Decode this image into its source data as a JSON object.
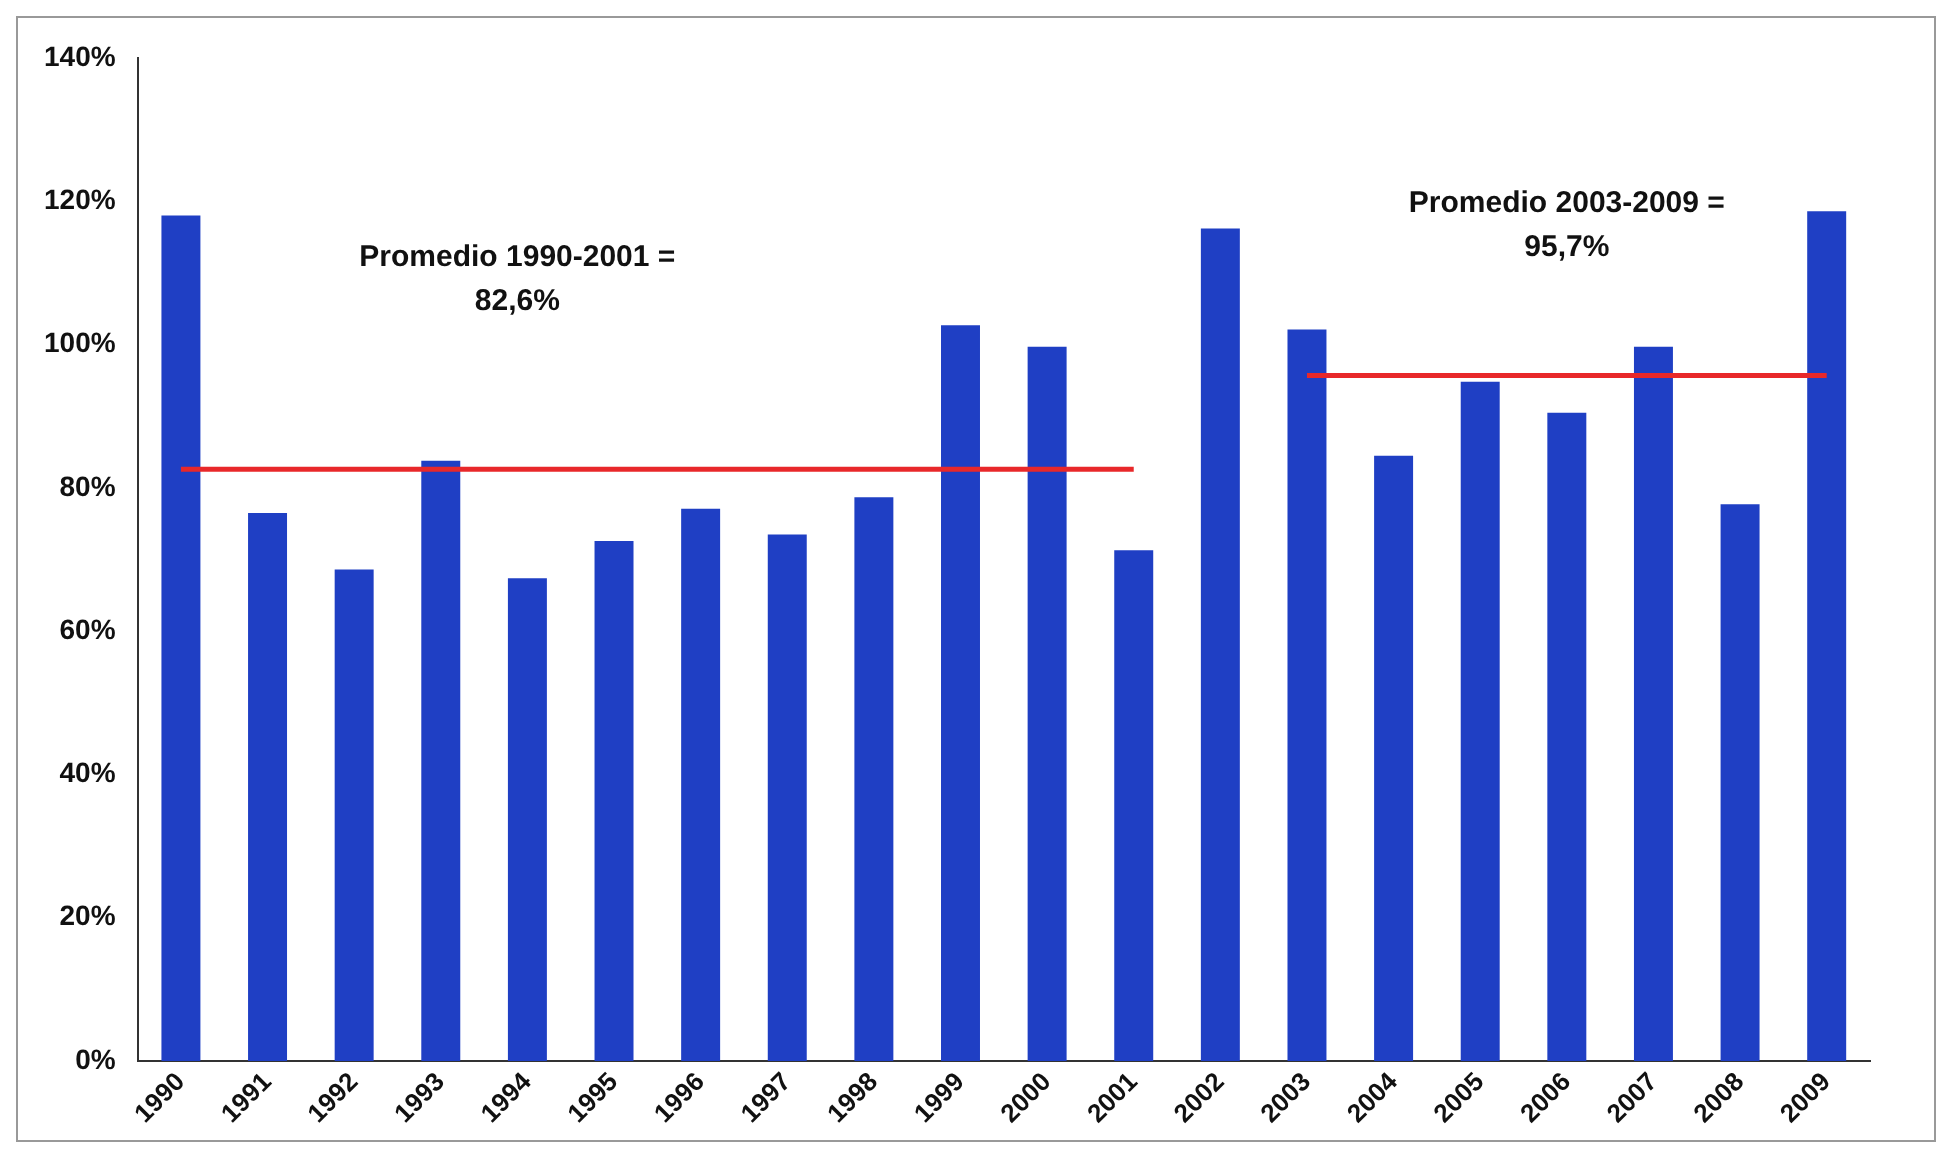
{
  "chart_data": {
    "type": "bar",
    "categories": [
      "1990",
      "1991",
      "1992",
      "1993",
      "1994",
      "1995",
      "1996",
      "1997",
      "1998",
      "1999",
      "2000",
      "2001",
      "2002",
      "2003",
      "2004",
      "2005",
      "2006",
      "2007",
      "2008",
      "2009"
    ],
    "series": [
      {
        "color": "#1f3fc4",
        "values": [
          118,
          76.5,
          68.6,
          83.8,
          67.4,
          72.6,
          77.1,
          73.5,
          78.7,
          102.7,
          99.7,
          71.3,
          116.2,
          102.1,
          84.5,
          94.8,
          90.5,
          99.7,
          77.7,
          118.6
        ]
      },
      {
        "type": "line",
        "color": "#e8282a",
        "values": [
          82.6,
          82.6,
          82.6,
          82.6,
          82.6,
          82.6,
          82.6,
          82.6,
          82.6,
          82.6,
          82.6,
          82.6,
          null,
          null,
          null,
          null,
          null,
          null,
          null,
          null
        ]
      },
      {
        "type": "line",
        "color": "#e8282a",
        "values": [
          null,
          null,
          null,
          null,
          null,
          null,
          null,
          null,
          null,
          null,
          null,
          null,
          null,
          95.7,
          95.7,
          95.7,
          95.7,
          95.7,
          95.7,
          95.7
        ]
      }
    ],
    "ylim": [
      0,
      140
    ],
    "yticks": [
      {
        "value": 0,
        "label": "0%"
      },
      {
        "value": 20,
        "label": "20%"
      },
      {
        "value": 40,
        "label": "40%"
      },
      {
        "value": 60,
        "label": "60%"
      },
      {
        "value": 80,
        "label": "80%"
      },
      {
        "value": 100,
        "label": "100%"
      },
      {
        "value": 120,
        "label": "120%"
      },
      {
        "value": 140,
        "label": "140%"
      }
    ],
    "grid": false,
    "legend": false,
    "marker": "none",
    "line_style": "solid",
    "annotations": [
      "Promedio 1990-2001 = 82,6%",
      "Promedio 2003-2009 = 95,7%"
    ]
  }
}
